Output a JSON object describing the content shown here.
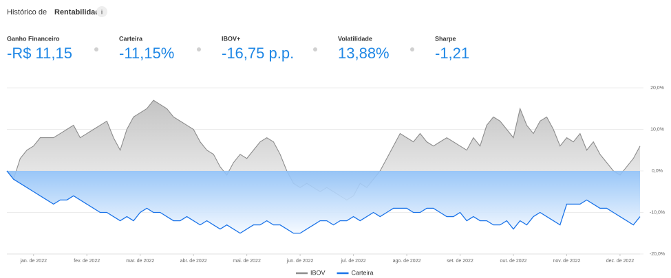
{
  "header": {
    "title_prefix": "Histórico de",
    "title_bold": "Rentabilidade",
    "info_icon": "i"
  },
  "stats": [
    {
      "label": "Ganho Financeiro",
      "value": "-R$ 11,15"
    },
    {
      "label": "Carteira",
      "value": "-11,15%"
    },
    {
      "label": "IBOV+",
      "value": "-16,75 p.p."
    },
    {
      "label": "Volatilidade",
      "value": "13,88%"
    },
    {
      "label": "Sharpe",
      "value": "-1,21"
    }
  ],
  "chart_data": {
    "type": "area",
    "categories": [
      null,
      null,
      null,
      null,
      "jan. de 2022",
      null,
      null,
      null,
      null,
      null,
      null,
      null,
      "fev. de 2022",
      null,
      null,
      null,
      null,
      null,
      null,
      null,
      "mar. de 2022",
      null,
      null,
      null,
      null,
      null,
      null,
      null,
      "abr. de 2022",
      null,
      null,
      null,
      null,
      null,
      null,
      null,
      "mai. de 2022",
      null,
      null,
      null,
      null,
      null,
      null,
      null,
      "jun. de 2022",
      null,
      null,
      null,
      null,
      null,
      null,
      null,
      "jul. de 2022",
      null,
      null,
      null,
      null,
      null,
      null,
      null,
      "ago. de 2022",
      null,
      null,
      null,
      null,
      null,
      null,
      null,
      "set. de 2022",
      null,
      null,
      null,
      null,
      null,
      null,
      null,
      "out. de 2022",
      null,
      null,
      null,
      null,
      null,
      null,
      null,
      "nov. de 2022",
      null,
      null,
      null,
      null,
      null,
      null,
      null,
      "dez. de 2022",
      null,
      null,
      null
    ],
    "series": [
      {
        "name": "IBOV",
        "color": "#8c8c8c",
        "values": [
          0,
          -2,
          3,
          5,
          6,
          8,
          8,
          8,
          9,
          10,
          11,
          8,
          9,
          10,
          11,
          12,
          8,
          5,
          10,
          13,
          14,
          15,
          17,
          16,
          15,
          13,
          12,
          11,
          10,
          7,
          5,
          4,
          1,
          -1,
          2,
          4,
          3,
          5,
          7,
          8,
          7,
          4,
          0,
          -3,
          -4,
          -3,
          -4,
          -5,
          -4,
          -5,
          -6,
          -7,
          -6,
          -3,
          -4,
          -2,
          0,
          3,
          6,
          9,
          8,
          7,
          9,
          7,
          6,
          7,
          8,
          7,
          6,
          5,
          8,
          6,
          11,
          13,
          12,
          10,
          8,
          15,
          11,
          9,
          12,
          13,
          10,
          6,
          8,
          7,
          9,
          5,
          7,
          4,
          2,
          0,
          -1,
          1,
          3,
          6
        ]
      },
      {
        "name": "Carteira",
        "color": "#1a73e8",
        "values": [
          0,
          -2,
          -3,
          -4,
          -5,
          -6,
          -7,
          -8,
          -7,
          -7,
          -6,
          -7,
          -8,
          -9,
          -10,
          -10,
          -11,
          -12,
          -11,
          -12,
          -10,
          -9,
          -10,
          -10,
          -11,
          -12,
          -12,
          -11,
          -12,
          -13,
          -12,
          -13,
          -14,
          -13,
          -14,
          -15,
          -14,
          -13,
          -13,
          -12,
          -13,
          -13,
          -14,
          -15,
          -15,
          -14,
          -13,
          -12,
          -12,
          -13,
          -12,
          -12,
          -11,
          -12,
          -11,
          -10,
          -11,
          -10,
          -9,
          -9,
          -9,
          -10,
          -10,
          -9,
          -9,
          -10,
          -11,
          -11,
          -10,
          -12,
          -11,
          -12,
          -12,
          -13,
          -13,
          -12,
          -14,
          -12,
          -13,
          -11,
          -10,
          -11,
          -12,
          -13,
          -8,
          -8,
          -8,
          -7,
          -8,
          -9,
          -9,
          -10,
          -11,
          -12,
          -13,
          -11
        ]
      }
    ],
    "ylim": [
      -20,
      20
    ],
    "yticks": [
      {
        "value": 20,
        "label": "20,0%"
      },
      {
        "value": 10,
        "label": "10,0%"
      },
      {
        "value": 0,
        "label": "0,0%"
      },
      {
        "value": -10,
        "label": "-10,0%"
      },
      {
        "value": -20,
        "label": "-20,0%"
      }
    ],
    "grid": true
  }
}
